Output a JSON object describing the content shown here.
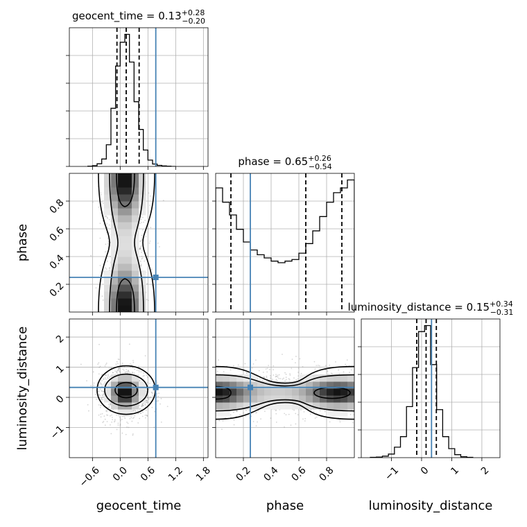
{
  "figure": {
    "truth_color": "#4682b4",
    "hist_color": "#000000",
    "density_color": "#000000",
    "grid_color": "#b0b0b0"
  },
  "chart_data": [
    {
      "type": "histogram",
      "panel": "geocent_time",
      "title": "geocent_time = 0.13",
      "title_sup": "+0.28",
      "title_sub": "−0.20",
      "xlabel": "geocent_time",
      "xlim": [
        -1.1,
        1.9
      ],
      "xticks": [
        -0.6,
        0.0,
        0.6,
        1.2,
        1.8
      ],
      "xtick_labels": [
        "−0.6",
        "0.0",
        "0.6",
        "1.2",
        "1.8"
      ],
      "bin_edges": [
        -0.7,
        -0.6,
        -0.5,
        -0.4,
        -0.3,
        -0.2,
        -0.1,
        0.0,
        0.1,
        0.2,
        0.3,
        0.4,
        0.5,
        0.6,
        0.7,
        0.8,
        0.9,
        1.0,
        1.1,
        1.2
      ],
      "counts": [
        1,
        3,
        10,
        28,
        82,
        220,
        380,
        470,
        500,
        395,
        245,
        140,
        62,
        24,
        9,
        4,
        2,
        1,
        0
      ],
      "quantiles": [
        -0.07,
        0.13,
        0.41
      ],
      "truth": 0.77
    },
    {
      "type": "histogram",
      "panel": "phase",
      "title": "phase = 0.65",
      "title_sup": "+0.26",
      "title_sub": "−0.54",
      "xlabel": "phase",
      "xlim": [
        0.0,
        1.0
      ],
      "xticks": [
        0.2,
        0.4,
        0.6,
        0.8
      ],
      "xtick_labels": [
        "0.2",
        "0.4",
        "0.6",
        "0.8"
      ],
      "bin_edges": [
        0.0,
        0.05,
        0.1,
        0.15,
        0.2,
        0.25,
        0.3,
        0.35,
        0.4,
        0.45,
        0.5,
        0.55,
        0.6,
        0.65,
        0.7,
        0.75,
        0.8,
        0.85,
        0.9,
        0.95,
        1.0
      ],
      "counts": [
        390,
        345,
        305,
        260,
        220,
        195,
        180,
        170,
        160,
        155,
        160,
        165,
        185,
        215,
        255,
        300,
        345,
        375,
        390,
        415
      ],
      "quantiles": [
        0.11,
        0.65,
        0.91
      ],
      "truth": 0.25
    },
    {
      "type": "histogram",
      "panel": "luminosity_distance",
      "title": "luminosity_distance = 0.15",
      "title_sup": "+0.34",
      "title_sub": "−0.31",
      "xlabel": "luminosity_distance",
      "xlim": [
        -2.0,
        2.6
      ],
      "xticks": [
        -1,
        0,
        1,
        2
      ],
      "xtick_labels": [
        "−1",
        "0",
        "1",
        "2"
      ],
      "bin_edges": [
        -1.7,
        -1.5,
        -1.3,
        -1.1,
        -0.9,
        -0.7,
        -0.5,
        -0.3,
        -0.1,
        0.1,
        0.3,
        0.5,
        0.7,
        0.9,
        1.1,
        1.3,
        1.5,
        1.7
      ],
      "counts": [
        1,
        2,
        5,
        12,
        35,
        70,
        170,
        300,
        420,
        440,
        310,
        160,
        70,
        30,
        10,
        3,
        1
      ],
      "quantiles": [
        -0.16,
        0.15,
        0.49
      ],
      "truth": 0.33
    },
    {
      "type": "scatter",
      "panel": "phase_vs_geocent_time",
      "x_param": "geocent_time",
      "y_param": "phase",
      "ylabel": "phase",
      "xlim": [
        -1.1,
        1.9
      ],
      "ylim": [
        0.0,
        1.0
      ],
      "yticks": [
        0.2,
        0.4,
        0.6,
        0.8
      ],
      "ytick_labels": [
        "0.2",
        "0.4",
        "0.6",
        "0.8"
      ],
      "truth": [
        0.77,
        0.25
      ],
      "density_peaks": [
        [
          0.1,
          0.92
        ],
        [
          0.1,
          0.07
        ]
      ]
    },
    {
      "type": "scatter",
      "panel": "luminosity_distance_vs_geocent_time",
      "x_param": "geocent_time",
      "y_param": "luminosity_distance",
      "ylabel": "luminosity_distance",
      "xlim": [
        -1.1,
        1.9
      ],
      "ylim": [
        -2.0,
        2.6
      ],
      "yticks": [
        -1,
        0,
        1,
        2
      ],
      "ytick_labels": [
        "−1",
        "0",
        "1",
        "2"
      ],
      "truth": [
        0.77,
        0.33
      ],
      "density_peaks": [
        [
          0.1,
          0.15
        ]
      ]
    },
    {
      "type": "scatter",
      "panel": "luminosity_distance_vs_phase",
      "x_param": "phase",
      "y_param": "luminosity_distance",
      "xlim": [
        0.0,
        1.0
      ],
      "ylim": [
        -2.0,
        2.6
      ],
      "truth": [
        0.25,
        0.33
      ],
      "density_peaks": [
        [
          0.05,
          0.15
        ],
        [
          0.85,
          0.15
        ]
      ]
    }
  ]
}
